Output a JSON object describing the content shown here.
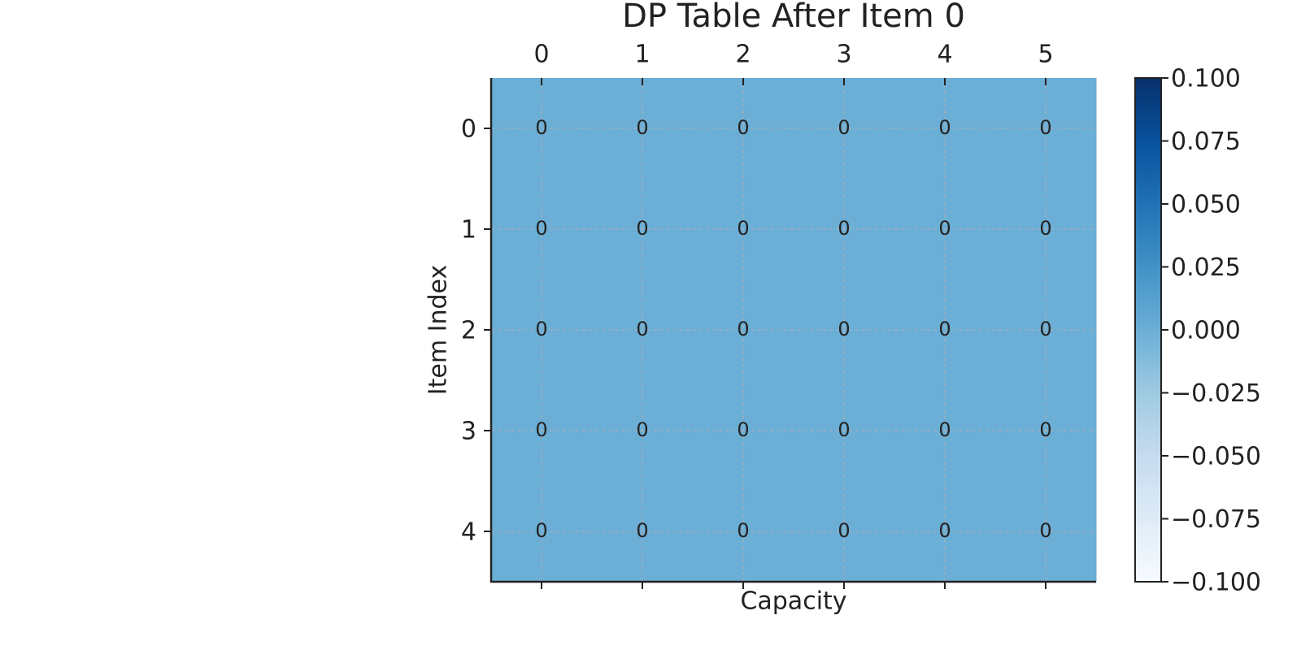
{
  "chart_data": {
    "type": "heatmap",
    "title": "DP Table After Item 0",
    "xlabel": "Capacity",
    "ylabel": "Item Index",
    "x": [
      0,
      1,
      2,
      3,
      4,
      5
    ],
    "y": [
      0,
      1,
      2,
      3,
      4
    ],
    "values": [
      [
        0,
        0,
        0,
        0,
        0,
        0
      ],
      [
        0,
        0,
        0,
        0,
        0,
        0
      ],
      [
        0,
        0,
        0,
        0,
        0,
        0
      ],
      [
        0,
        0,
        0,
        0,
        0,
        0
      ],
      [
        0,
        0,
        0,
        0,
        0,
        0
      ]
    ],
    "colormap": [
      "#f7fbff",
      "#deebf7",
      "#c6dbef",
      "#9ecae1",
      "#6baed6",
      "#4292c6",
      "#2171b5",
      "#08519c",
      "#08306b"
    ],
    "clim": [
      -0.1,
      0.1
    ],
    "cticks": [
      {
        "value": -0.1,
        "label": "−0.100"
      },
      {
        "value": -0.075,
        "label": "−0.075"
      },
      {
        "value": -0.05,
        "label": "−0.050"
      },
      {
        "value": -0.025,
        "label": "−0.025"
      },
      {
        "value": 0,
        "label": "0.000"
      },
      {
        "value": 0.025,
        "label": "0.025"
      },
      {
        "value": 0.05,
        "label": "0.050"
      },
      {
        "value": 0.075,
        "label": "0.075"
      },
      {
        "value": 0.1,
        "label": "0.100"
      }
    ],
    "grid": true
  }
}
